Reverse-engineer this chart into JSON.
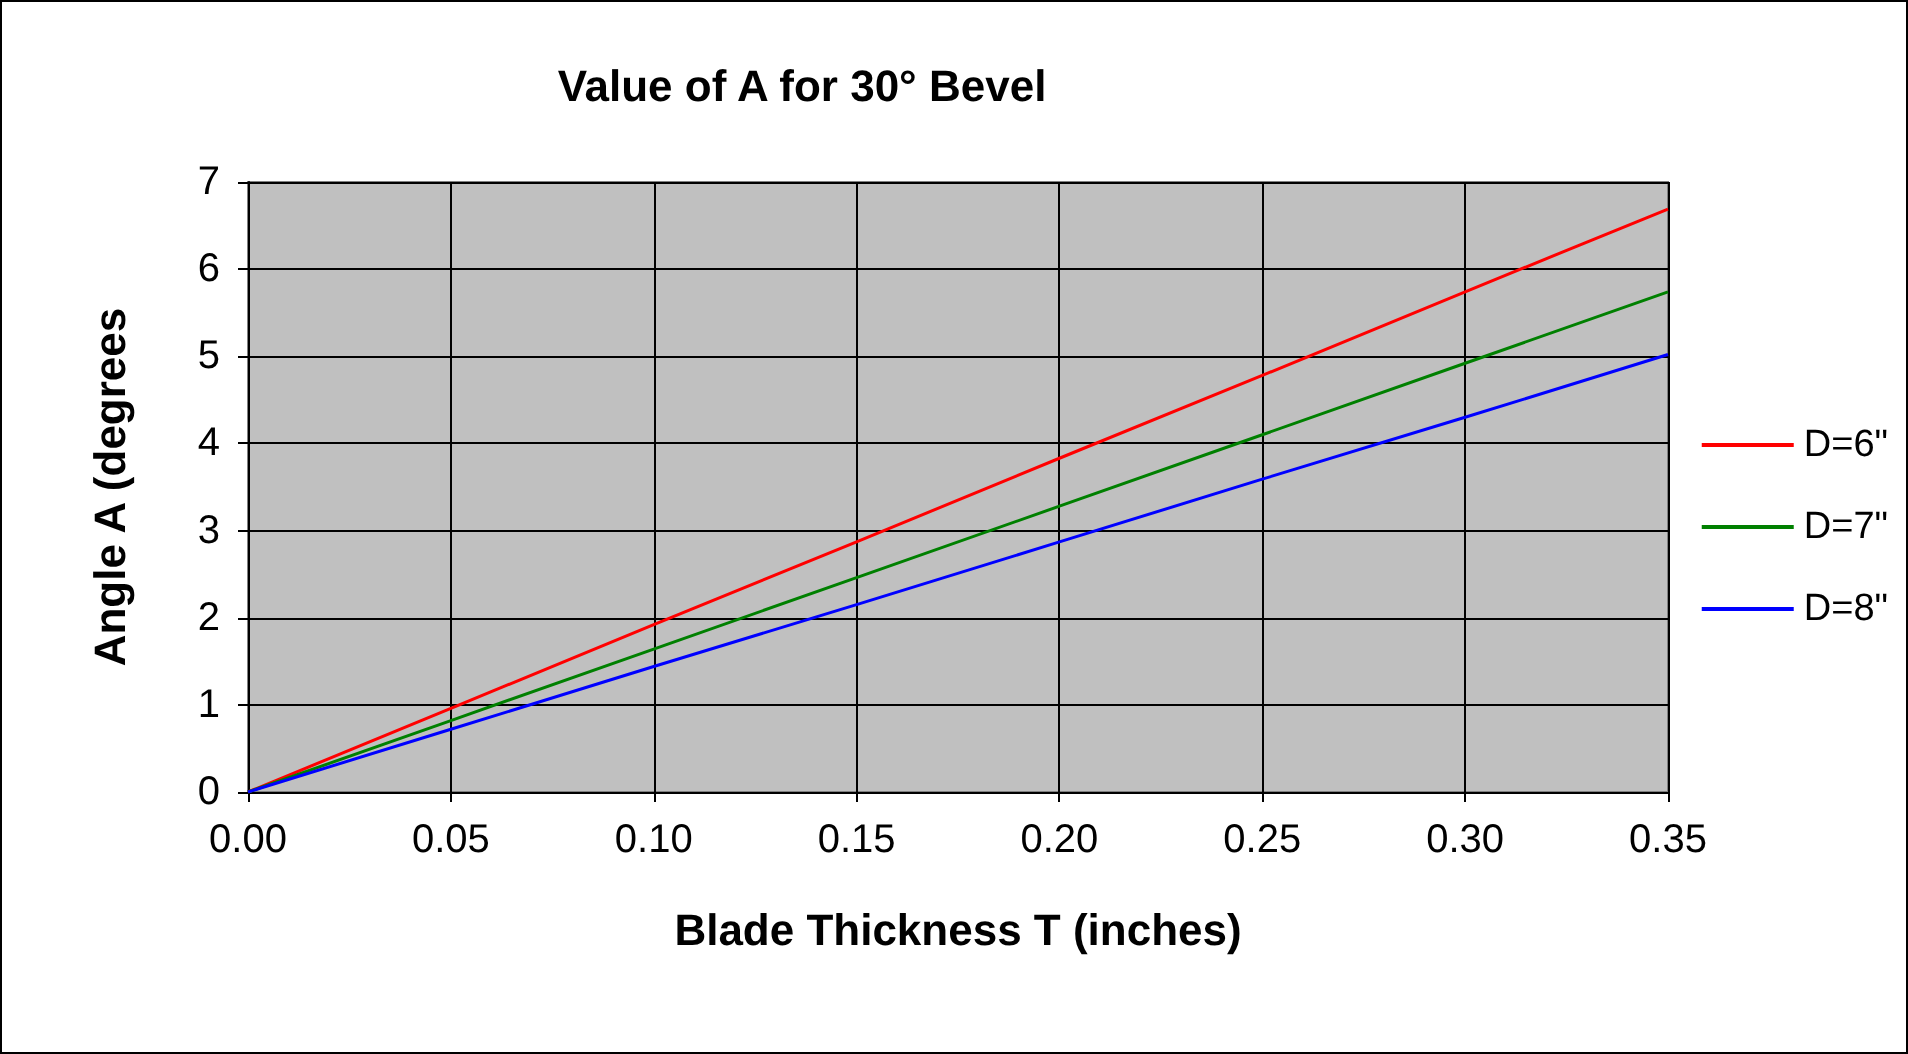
{
  "chart_data": {
    "type": "line",
    "title": "Value of A for 30° Bevel",
    "xlabel": "Blade Thickness T (inches)",
    "ylabel": "Angle A (degrees",
    "x": [
      0,
      0.05,
      0.1,
      0.15,
      0.2,
      0.25,
      0.3,
      0.35
    ],
    "series": [
      {
        "name": "D=6\"",
        "color": "#ff0000",
        "values": [
          0,
          0.96,
          1.92,
          2.87,
          3.83,
          4.78,
          5.74,
          6.69
        ]
      },
      {
        "name": "D=7\"",
        "color": "#008000",
        "values": [
          0,
          0.82,
          1.64,
          2.46,
          3.28,
          4.1,
          4.92,
          5.74
        ]
      },
      {
        "name": "D=8\"",
        "color": "#0000ff",
        "values": [
          0,
          0.72,
          1.44,
          2.15,
          2.87,
          3.59,
          4.3,
          5.02
        ]
      }
    ],
    "xlim": [
      0,
      0.35
    ],
    "xticks": [
      {
        "value": 0,
        "label": "0.00"
      },
      {
        "value": 0.05,
        "label": "0.05"
      },
      {
        "value": 0.1,
        "label": "0.10"
      },
      {
        "value": 0.15,
        "label": "0.15"
      },
      {
        "value": 0.2,
        "label": "0.20"
      },
      {
        "value": 0.25,
        "label": "0.25"
      },
      {
        "value": 0.3,
        "label": "0.30"
      },
      {
        "value": 0.35,
        "label": "0.35"
      }
    ],
    "ylim": [
      0,
      7
    ],
    "yticks": [
      0,
      1,
      2,
      3,
      4,
      5,
      6,
      7
    ],
    "grid": true,
    "legend": "right",
    "marker": "none",
    "line_style": "solid"
  }
}
